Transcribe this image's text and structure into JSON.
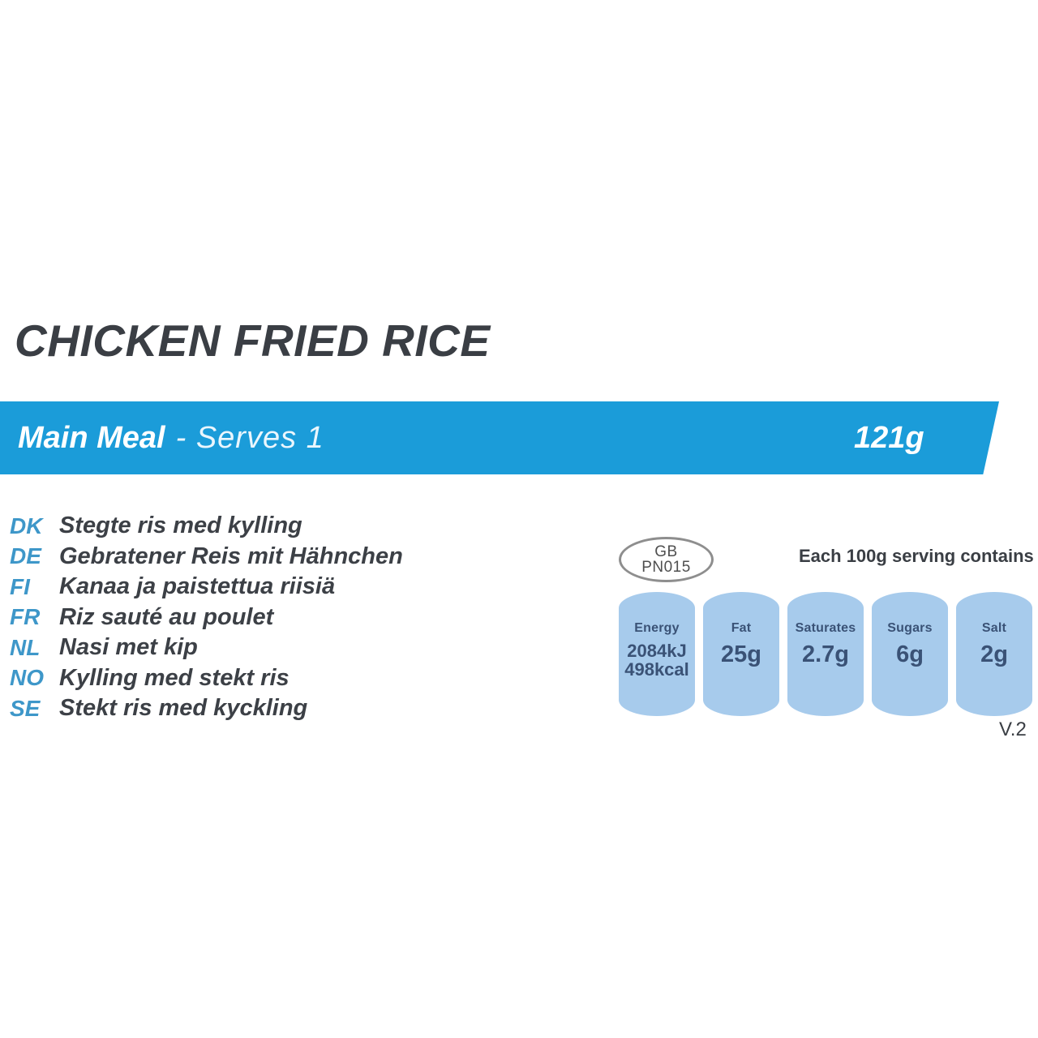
{
  "title": "CHICKEN FRIED RICE",
  "banner": {
    "category": "Main Meal",
    "serves_text": "- Serves 1",
    "weight": "121g"
  },
  "translations": [
    {
      "code": "DK",
      "text": "Stegte ris med kylling"
    },
    {
      "code": "DE",
      "text": "Gebratener Reis mit Hähnchen"
    },
    {
      "code": "FI",
      "text": "Kanaa ja paistettua riisiä"
    },
    {
      "code": "FR",
      "text": "Riz sauté au poulet"
    },
    {
      "code": "NL",
      "text": "Nasi met kip"
    },
    {
      "code": "NO",
      "text": "Kylling med stekt ris"
    },
    {
      "code": "SE",
      "text": "Stekt ris med kyckling"
    }
  ],
  "approval_badge": {
    "line1": "GB",
    "line2": "PN015"
  },
  "serving_heading": "Each 100g serving contains",
  "nutrition": [
    {
      "label": "Energy",
      "value": "2084kJ",
      "value2": "498kcal"
    },
    {
      "label": "Fat",
      "value": "25g"
    },
    {
      "label": "Saturates",
      "value": "2.7g"
    },
    {
      "label": "Sugars",
      "value": "6g"
    },
    {
      "label": "Salt",
      "value": "2g"
    }
  ],
  "version": "V.2",
  "colors": {
    "banner_blue": "#1b9cd9",
    "pill_blue": "#a7cbec",
    "pill_text": "#3a5276",
    "code_blue": "#3e97c9",
    "dark_text": "#3a3e44"
  }
}
